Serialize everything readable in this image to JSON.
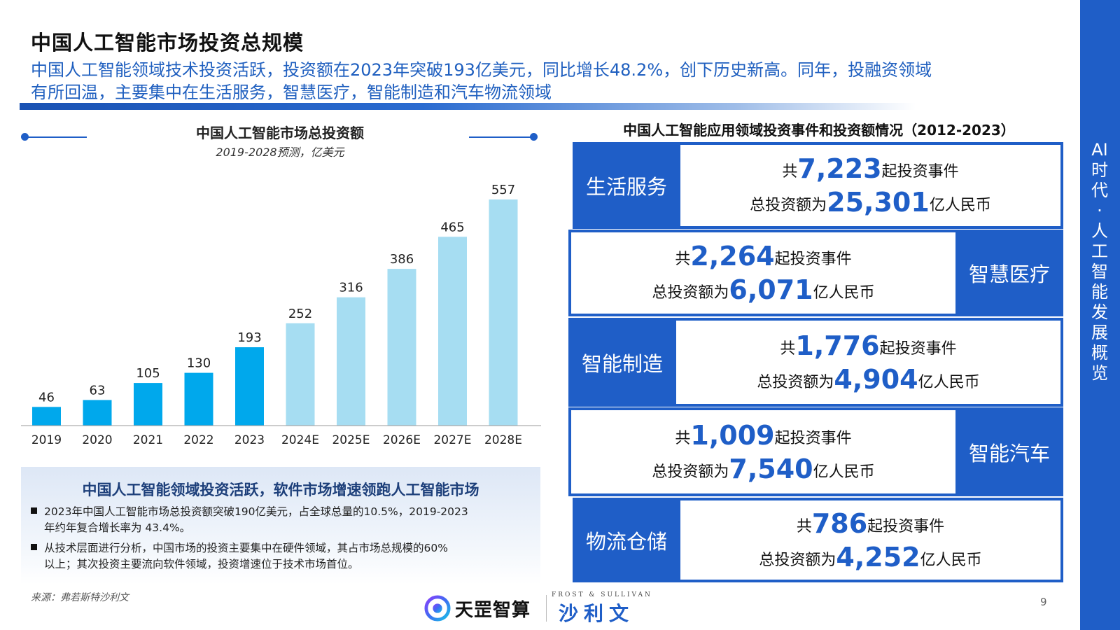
{
  "header": {
    "title": "中国人工智能市场投资总规模",
    "subtitle_line1": "中国人工智能领域技术投资活跃，投资额在2023年突破193亿美元，同比增长48.2%，创下历史新高。同年，投融资领域",
    "subtitle_line2": "有所回温，主要集中在生活服务，智慧医疗，智能制造和汽车物流领域"
  },
  "sidebar": {
    "text": "AI时代·人工智能发展概览",
    "color": "#1f5ec7"
  },
  "chart_data": {
    "type": "bar",
    "title": "中国人工智能市场总投资额",
    "subtitle": "2019-2028预测，亿美元",
    "categories": [
      "2019",
      "2020",
      "2021",
      "2022",
      "2023",
      "2024E",
      "2025E",
      "2026E",
      "2027E",
      "2028E"
    ],
    "values": [
      46,
      63,
      105,
      130,
      193,
      252,
      316,
      386,
      465,
      557
    ],
    "colors": {
      "actual": "#00a8ec",
      "forecast": "#a6ddf2"
    },
    "forecast_start_index": 5,
    "ylim": [
      0,
      600
    ],
    "grid": false
  },
  "summary": {
    "title": "中国人工智能领域投资活跃，软件市场增速领跑人工智能市场",
    "bullets": [
      {
        "line1": "2023年中国人工智能市场总投资额突破190亿美元，占全球总量的10.5%，2019-2023",
        "line2": "年约年复合增长率为 43.4%。"
      },
      {
        "line1": "从技术层面进行分析，中国市场的投资主要集中在硬件领域，其占市场总规模的60%",
        "line2": "以上；其次投资主要流向软件领域，投资增速位于技术市场首位。"
      }
    ]
  },
  "right_panel": {
    "title": "中国人工智能应用领域投资事件和投资额情况（2012-2023）",
    "events_prefix": "共",
    "events_suffix": "起投资事件",
    "amount_prefix": "总投资额为",
    "amount_suffix": "亿人民币",
    "items": [
      {
        "label": "生活服务",
        "events": "7,223",
        "amount": "25,301"
      },
      {
        "label": "智慧医疗",
        "events": "2,264",
        "amount": "6,071"
      },
      {
        "label": "智能制造",
        "events": "1,776",
        "amount": "4,904"
      },
      {
        "label": "智能汽车",
        "events": "1,009",
        "amount": "7,540"
      },
      {
        "label": "物流仓储",
        "events": "786",
        "amount": "4,252"
      }
    ]
  },
  "footer": {
    "source": "来源：弗若斯特沙利文",
    "logo1_text": "天罡智算",
    "logo2_small": "FROST & SULLIVAN",
    "logo2_text": "沙利文",
    "page_number": "9"
  }
}
